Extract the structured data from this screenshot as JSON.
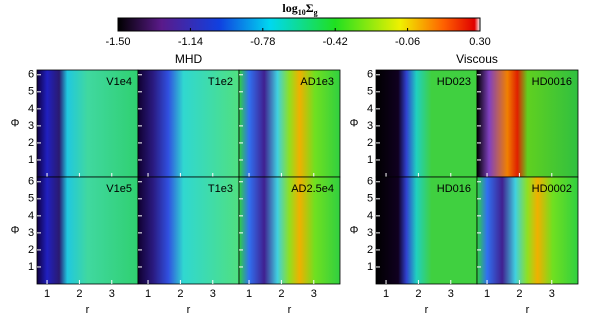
{
  "colorbar": {
    "title_parts": [
      "log",
      "10",
      "Σ",
      "g"
    ],
    "lim": [
      -1.5,
      0.3
    ],
    "ticks": [
      {
        "value": -1.5,
        "label": "-1.50"
      },
      {
        "value": -1.14,
        "label": "-1.14"
      },
      {
        "value": -0.78,
        "label": "-0.78"
      },
      {
        "value": -0.42,
        "label": "-0.42"
      },
      {
        "value": -0.06,
        "label": "-0.06"
      },
      {
        "value": 0.3,
        "label": "0.30"
      }
    ]
  },
  "axes": {
    "xlabel": "r",
    "ylabel": "Φ",
    "xlim": [
      0.69,
      3.81
    ],
    "ylim": [
      0,
      6.28
    ],
    "xticks": [
      1,
      2,
      3
    ],
    "yticks": [
      1,
      2,
      3,
      4,
      5,
      6
    ]
  },
  "groups": [
    {
      "title": "MHD",
      "panels": [
        [
          "V1e4",
          "T1e2",
          "AD1e3"
        ],
        [
          "V1e5",
          "T1e3",
          "AD2.5e4"
        ]
      ]
    },
    {
      "title": "Viscous",
      "panels": [
        [
          "HD023",
          "HD0016"
        ],
        [
          "HD016",
          "HD0002"
        ]
      ]
    }
  ]
}
